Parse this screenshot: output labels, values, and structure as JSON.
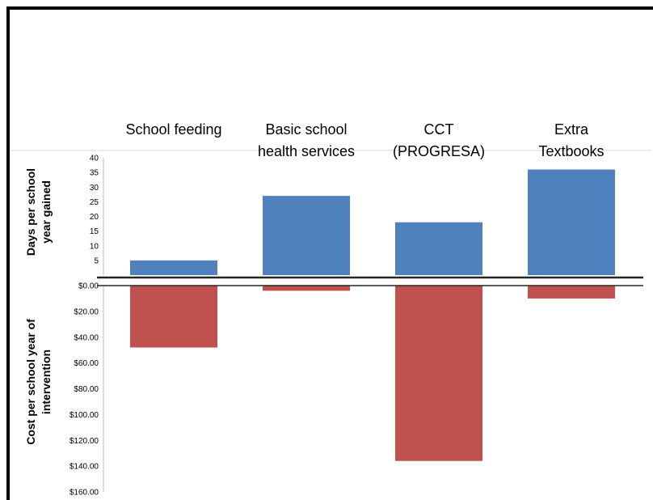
{
  "chart_data": {
    "type": "bar",
    "categories": [
      [
        "School feeding"
      ],
      [
        "Basic school",
        "health services"
      ],
      [
        "CCT",
        "(PROGRESA)"
      ],
      [
        "Extra",
        "Textbooks"
      ]
    ],
    "panels": [
      {
        "ylabel": [
          "Days per school",
          "year gained"
        ],
        "ylim": [
          0,
          40
        ],
        "ticks": [
          5,
          10,
          15,
          20,
          25,
          30,
          35,
          40
        ],
        "tick_labels": [
          "5",
          "10",
          "15",
          "20",
          "25",
          "30",
          "35",
          "40"
        ],
        "color": "#4F81BD",
        "values": [
          5,
          27,
          18,
          36
        ]
      },
      {
        "ylabel": [
          "Cost per school year of",
          "intervention"
        ],
        "ylim": [
          0,
          160
        ],
        "ticks": [
          0,
          20,
          40,
          60,
          80,
          100,
          120,
          140,
          160
        ],
        "tick_labels": [
          "$0.00",
          "$20.00",
          "$40.00",
          "$60.00",
          "$80.00",
          "$100.00",
          "$120.00",
          "$140.00",
          "$160.00"
        ],
        "color": "#C0504D",
        "values": [
          48,
          4,
          136,
          10
        ]
      }
    ]
  }
}
